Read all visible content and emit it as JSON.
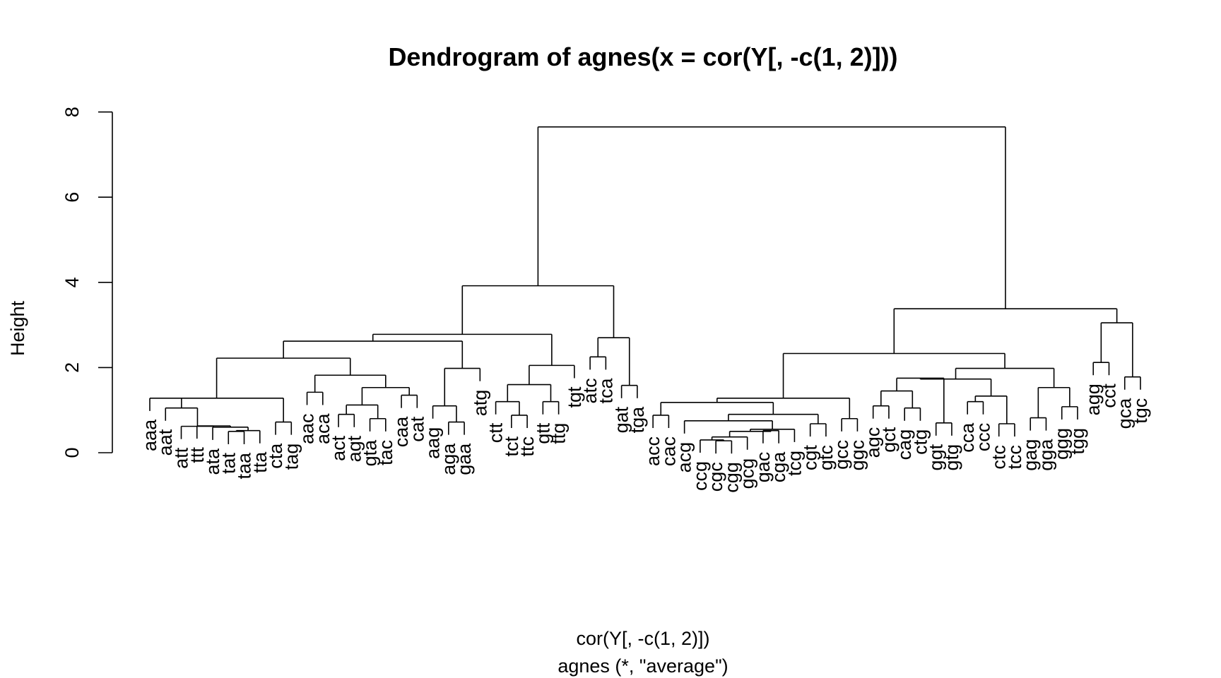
{
  "chart_data": {
    "type": "dendrogram",
    "title": "Dendrogram of  agnes(x = cor(Y[, -c(1, 2)]))",
    "xlabel": "cor(Y[, -c(1, 2)])",
    "sublabel": "agnes (*, \"average\")",
    "ylabel": "Height",
    "ylim": [
      0,
      8
    ],
    "y_ticks": [
      "0",
      "2",
      "4",
      "6",
      "8"
    ],
    "hang": 0.3,
    "leaves": [
      "aaa",
      "aat",
      "att",
      "ttt",
      "ata",
      "tat",
      "taa",
      "tta",
      "cta",
      "tag",
      "aac",
      "aca",
      "act",
      "agt",
      "gta",
      "tac",
      "caa",
      "cat",
      "aag",
      "aga",
      "gaa",
      "atg",
      "ctt",
      "tct",
      "ttc",
      "gtt",
      "ttg",
      "tgt",
      "atc",
      "tca",
      "gat",
      "tga",
      "acc",
      "cac",
      "acg",
      "ccg",
      "cgc",
      "cgg",
      "gcg",
      "gac",
      "cga",
      "tcg",
      "cgt",
      "gtc",
      "gcc",
      "ggc",
      "agc",
      "gct",
      "cag",
      "ctg",
      "ggt",
      "gtg",
      "cca",
      "ccc",
      "ctc",
      "tcc",
      "gag",
      "gga",
      "ggg",
      "tgg",
      "agg",
      "cct",
      "gca",
      "tgc"
    ],
    "merges": [
      {
        "members": [
          "tat",
          "taa"
        ],
        "height": 0.5
      },
      {
        "members": [
          "tat",
          "taa",
          "tta"
        ],
        "height": 0.52
      },
      {
        "members": [
          "ata",
          "tat",
          "taa",
          "tta"
        ],
        "height": 0.6
      },
      {
        "members": [
          "ttt",
          "ata",
          "tat",
          "taa",
          "tta"
        ],
        "height": 0.63
      },
      {
        "members": [
          "att",
          "ttt",
          "ata",
          "tat",
          "taa",
          "tta"
        ],
        "height": 0.62
      },
      {
        "members": [
          "aat",
          "att",
          "ttt",
          "ata",
          "tat",
          "taa",
          "tta"
        ],
        "height": 1.05
      },
      {
        "members": [
          "cta",
          "tag"
        ],
        "height": 0.72
      },
      {
        "members": [
          "aaa",
          "aat",
          "att",
          "ttt",
          "ata",
          "tat",
          "taa",
          "tta",
          "cta",
          "tag"
        ],
        "height": 1.28
      },
      {
        "members": [
          "aac",
          "aca"
        ],
        "height": 1.42
      },
      {
        "members": [
          "act",
          "agt"
        ],
        "height": 0.9
      },
      {
        "members": [
          "gta",
          "tac"
        ],
        "height": 0.8
      },
      {
        "members": [
          "act",
          "agt",
          "gta",
          "tac"
        ],
        "height": 1.12
      },
      {
        "members": [
          "caa",
          "cat"
        ],
        "height": 1.35
      },
      {
        "members": [
          "act",
          "agt",
          "gta",
          "tac",
          "caa",
          "cat"
        ],
        "height": 1.53
      },
      {
        "members": [
          "aac",
          "aca",
          "act",
          "agt",
          "gta",
          "tac",
          "caa",
          "cat"
        ],
        "height": 1.82
      },
      {
        "members": [
          "aaa",
          "aat",
          "att",
          "ttt",
          "ata",
          "tat",
          "taa",
          "tta",
          "cta",
          "tag",
          "aac",
          "aca",
          "act",
          "agt",
          "gta",
          "tac",
          "caa",
          "cat"
        ],
        "height": 2.22
      },
      {
        "members": [
          "aga",
          "gaa"
        ],
        "height": 0.72
      },
      {
        "members": [
          "aag",
          "aga",
          "gaa"
        ],
        "height": 1.1
      },
      {
        "members": [
          "aag",
          "aga",
          "gaa",
          "atg"
        ],
        "height": 1.98
      },
      {
        "members": [
          "aaa",
          "aat",
          "att",
          "ttt",
          "ata",
          "tat",
          "taa",
          "tta",
          "cta",
          "tag",
          "aac",
          "aca",
          "act",
          "agt",
          "gta",
          "tac",
          "caa",
          "cat",
          "aag",
          "aga",
          "gaa",
          "atg"
        ],
        "height": 2.62
      },
      {
        "members": [
          "tct",
          "ttc"
        ],
        "height": 0.88
      },
      {
        "members": [
          "ctt",
          "tct",
          "ttc"
        ],
        "height": 1.2
      },
      {
        "members": [
          "gtt",
          "ttg"
        ],
        "height": 1.2
      },
      {
        "members": [
          "ctt",
          "tct",
          "ttc",
          "gtt",
          "ttg"
        ],
        "height": 1.6
      },
      {
        "members": [
          "ctt",
          "tct",
          "ttc",
          "gtt",
          "ttg",
          "tgt"
        ],
        "height": 2.05
      },
      {
        "members": [
          "aaa",
          "aat",
          "att",
          "ttt",
          "ata",
          "tat",
          "taa",
          "tta",
          "cta",
          "tag",
          "aac",
          "aca",
          "act",
          "agt",
          "gta",
          "tac",
          "caa",
          "cat",
          "aag",
          "aga",
          "gaa",
          "atg",
          "ctt",
          "tct",
          "ttc",
          "gtt",
          "ttg",
          "tgt"
        ],
        "height": 2.78
      },
      {
        "members": [
          "atc",
          "tca"
        ],
        "height": 2.25
      },
      {
        "members": [
          "gat",
          "tga"
        ],
        "height": 1.58
      },
      {
        "members": [
          "atc",
          "tca",
          "gat",
          "tga"
        ],
        "height": 2.7
      },
      {
        "members": [
          "aaa",
          "aat",
          "att",
          "ttt",
          "ata",
          "tat",
          "taa",
          "tta",
          "cta",
          "tag",
          "aac",
          "aca",
          "act",
          "agt",
          "gta",
          "tac",
          "caa",
          "cat",
          "aag",
          "aga",
          "gaa",
          "atg",
          "ctt",
          "tct",
          "ttc",
          "gtt",
          "ttg",
          "tgt",
          "atc",
          "tca",
          "gat",
          "tga"
        ],
        "height": 3.92
      },
      {
        "members": [
          "acc",
          "cac"
        ],
        "height": 0.88
      },
      {
        "members": [
          "cgc",
          "cgg"
        ],
        "height": 0.28
      },
      {
        "members": [
          "ccg",
          "cgc",
          "cgg"
        ],
        "height": 0.3
      },
      {
        "members": [
          "ccg",
          "cgc",
          "cgg",
          "gcg"
        ],
        "height": 0.37
      },
      {
        "members": [
          "gac",
          "cga"
        ],
        "height": 0.52
      },
      {
        "members": [
          "ccg",
          "cgc",
          "cgg",
          "gcg",
          "gac",
          "cga"
        ],
        "height": 0.5
      },
      {
        "members": [
          "ccg",
          "cgc",
          "cgg",
          "gcg",
          "gac",
          "cga",
          "tcg"
        ],
        "height": 0.55
      },
      {
        "members": [
          "acg",
          "ccg",
          "cgc",
          "cgg",
          "gcg",
          "gac",
          "cga",
          "tcg"
        ],
        "height": 0.75
      },
      {
        "members": [
          "cgt",
          "gtc"
        ],
        "height": 0.68
      },
      {
        "members": [
          "acg",
          "ccg",
          "cgc",
          "cgg",
          "gcg",
          "gac",
          "cga",
          "tcg",
          "cgt",
          "gtc"
        ],
        "height": 0.9
      },
      {
        "members": [
          "acc",
          "cac",
          "acg",
          "ccg",
          "cgc",
          "cgg",
          "gcg",
          "gac",
          "cga",
          "tcg",
          "cgt",
          "gtc"
        ],
        "height": 1.18
      },
      {
        "members": [
          "gcc",
          "ggc"
        ],
        "height": 0.8
      },
      {
        "members": [
          "acc",
          "cac",
          "acg",
          "ccg",
          "cgc",
          "cgg",
          "gcg",
          "gac",
          "cga",
          "tcg",
          "cgt",
          "gtc",
          "gcc",
          "ggc"
        ],
        "height": 1.28
      },
      {
        "members": [
          "agc",
          "gct"
        ],
        "height": 1.1
      },
      {
        "members": [
          "cag",
          "ctg"
        ],
        "height": 1.05
      },
      {
        "members": [
          "agc",
          "gct",
          "cag",
          "ctg"
        ],
        "height": 1.45
      },
      {
        "members": [
          "ggt",
          "gtg"
        ],
        "height": 0.7
      },
      {
        "members": [
          "agc",
          "gct",
          "cag",
          "ctg",
          "ggt",
          "gtg"
        ],
        "height": 1.75
      },
      {
        "members": [
          "cca",
          "ccc"
        ],
        "height": 1.2
      },
      {
        "members": [
          "ctc",
          "tcc"
        ],
        "height": 0.68
      },
      {
        "members": [
          "cca",
          "ccc",
          "ctc",
          "tcc"
        ],
        "height": 1.33
      },
      {
        "members": [
          "agc",
          "gct",
          "cag",
          "ctg",
          "ggt",
          "gtg",
          "cca",
          "ccc",
          "ctc",
          "tcc"
        ],
        "height": 1.73
      },
      {
        "members": [
          "gag",
          "gga"
        ],
        "height": 0.82
      },
      {
        "members": [
          "ggg",
          "tgg"
        ],
        "height": 1.08
      },
      {
        "members": [
          "gag",
          "gga",
          "ggg",
          "tgg"
        ],
        "height": 1.53
      },
      {
        "members": [
          "agc",
          "gct",
          "cag",
          "ctg",
          "ggt",
          "gtg",
          "cca",
          "ccc",
          "ctc",
          "tcc",
          "gag",
          "gga",
          "ggg",
          "tgg"
        ],
        "height": 1.98
      },
      {
        "members": [
          "acc",
          "cac",
          "acg",
          "ccg",
          "cgc",
          "cgg",
          "gcg",
          "gac",
          "cga",
          "tcg",
          "cgt",
          "gtc",
          "gcc",
          "ggc",
          "agc",
          "gct",
          "cag",
          "ctg",
          "ggt",
          "gtg",
          "cca",
          "ccc",
          "ctc",
          "tcc",
          "gag",
          "gga",
          "ggg",
          "tgg"
        ],
        "height": 2.33
      },
      {
        "members": [
          "agg",
          "cct"
        ],
        "height": 2.12
      },
      {
        "members": [
          "gca",
          "tgc"
        ],
        "height": 1.78
      },
      {
        "members": [
          "agg",
          "cct",
          "gca",
          "tgc"
        ],
        "height": 3.05
      },
      {
        "members": [
          "acc",
          "cac",
          "acg",
          "ccg",
          "cgc",
          "cgg",
          "gcg",
          "gac",
          "cga",
          "tcg",
          "cgt",
          "gtc",
          "gcc",
          "ggc",
          "agc",
          "gct",
          "cag",
          "ctg",
          "ggt",
          "gtg",
          "cca",
          "ccc",
          "ctc",
          "tcc",
          "gag",
          "gga",
          "ggg",
          "tgg",
          "agg",
          "cct",
          "gca",
          "tgc"
        ],
        "height": 3.38
      },
      {
        "members": [
          "aaa",
          "aat",
          "att",
          "ttt",
          "ata",
          "tat",
          "taa",
          "tta",
          "cta",
          "tag",
          "aac",
          "aca",
          "act",
          "agt",
          "gta",
          "tac",
          "caa",
          "cat",
          "aag",
          "aga",
          "gaa",
          "atg",
          "ctt",
          "tct",
          "ttc",
          "gtt",
          "ttg",
          "tgt",
          "atc",
          "tca",
          "gat",
          "tga",
          "acc",
          "cac",
          "acg",
          "ccg",
          "cgc",
          "cgg",
          "gcg",
          "gac",
          "cga",
          "tcg",
          "cgt",
          "gtc",
          "gcc",
          "ggc",
          "agc",
          "gct",
          "cag",
          "ctg",
          "ggt",
          "gtg",
          "cca",
          "ccc",
          "ctc",
          "tcc",
          "gag",
          "gga",
          "ggg",
          "tgg",
          "agg",
          "cct",
          "gca",
          "tgc"
        ],
        "height": 7.65
      }
    ]
  }
}
